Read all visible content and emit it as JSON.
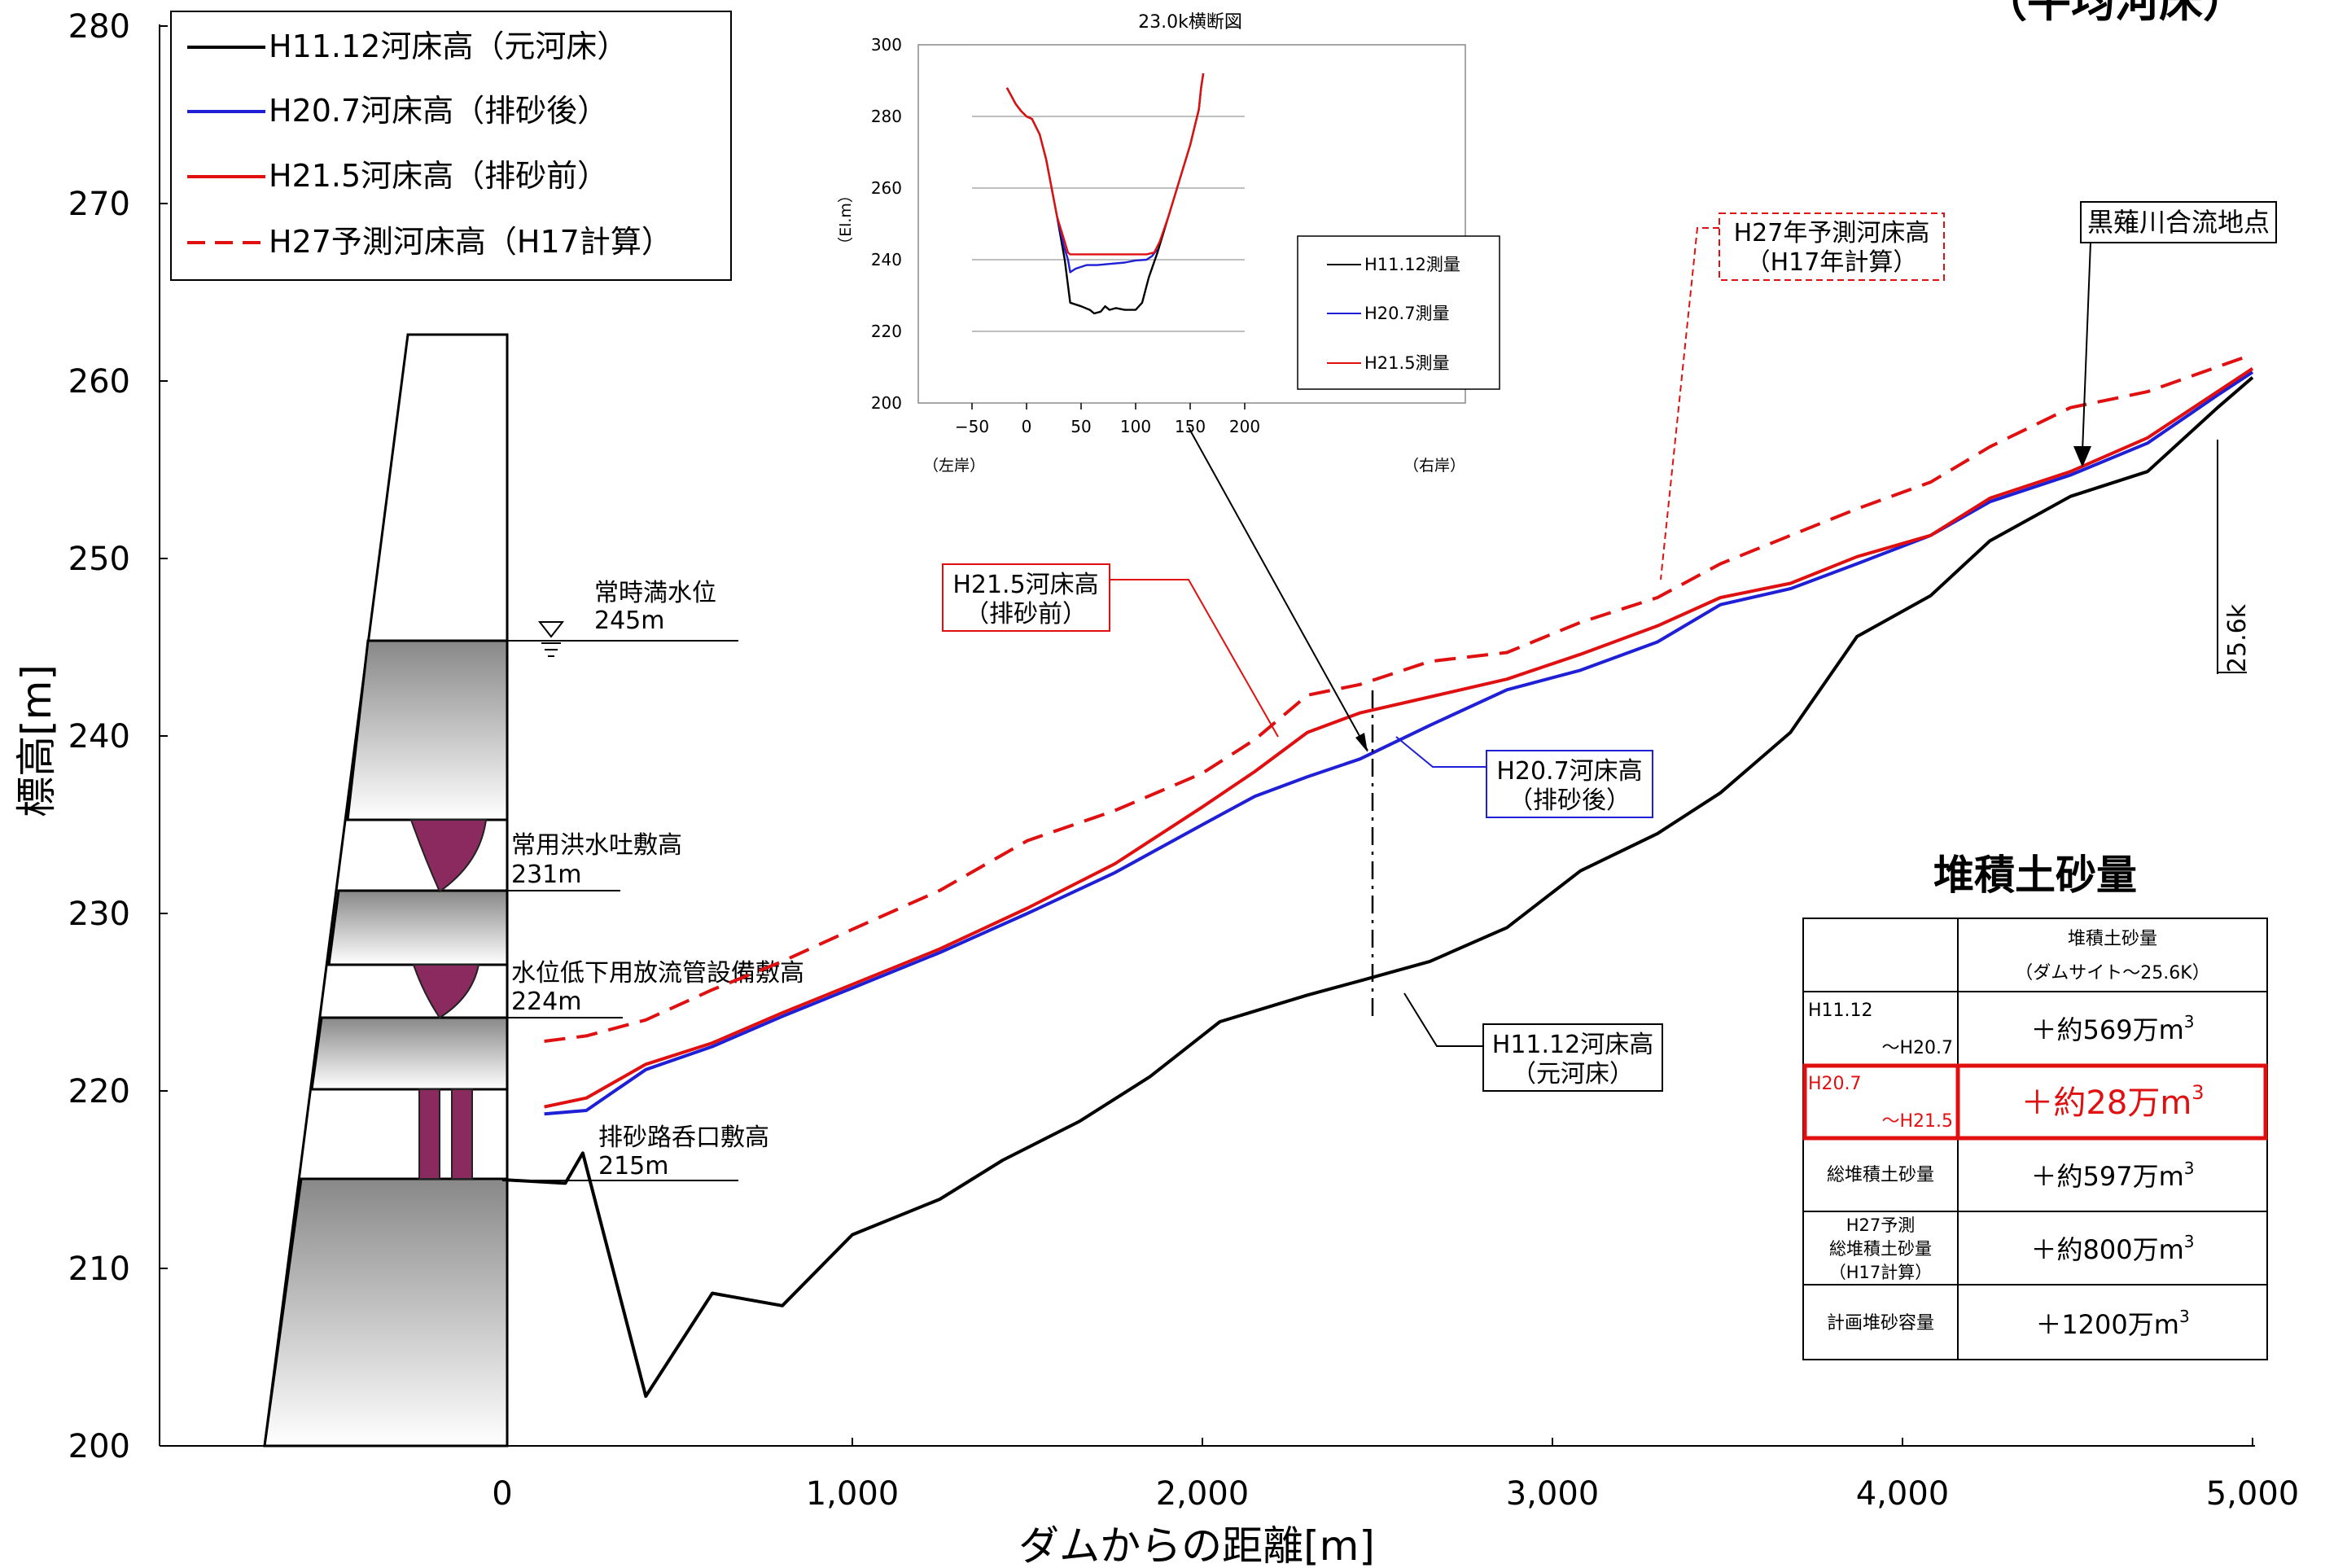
{
  "chart_data": {
    "type": "line",
    "corner_title": "（平均河床）",
    "xlabel": "ダムからの距離[m]",
    "ylabel": "標高[m]",
    "xlim": [
      -1000,
      5000
    ],
    "ylim": [
      200,
      280
    ],
    "x_ticks": [
      0,
      1000,
      2000,
      3000,
      4000,
      5000
    ],
    "x_tick_labels": [
      "0",
      "1,000",
      "2,000",
      "3,000",
      "4,000",
      "5,000"
    ],
    "y_ticks": [
      200,
      210,
      220,
      230,
      240,
      250,
      260,
      270,
      280
    ],
    "y_tick_labels": [
      "200",
      "210",
      "220",
      "230",
      "240",
      "250",
      "260",
      "270",
      "280"
    ],
    "legend_position": "top-left",
    "series": [
      {
        "name": "H11.12河床高（元河床）",
        "color": "#000000",
        "dash": "solid",
        "x": [
          0,
          180,
          230,
          410,
          600,
          800,
          1000,
          1250,
          1430,
          1650,
          1850,
          2050,
          2300,
          2450,
          2650,
          2870,
          3080,
          3300,
          3480,
          3680,
          3870,
          4080,
          4250,
          4480,
          4700,
          4900,
          5000
        ],
        "y": [
          215.0,
          214.8,
          216.5,
          202.8,
          208.6,
          207.9,
          211.9,
          213.9,
          216.1,
          218.3,
          220.8,
          223.9,
          225.4,
          226.2,
          227.3,
          229.2,
          232.4,
          234.5,
          236.8,
          240.2,
          245.6,
          247.9,
          251.0,
          253.5,
          254.9,
          258.5,
          260.2
        ]
      },
      {
        "name": "H20.7河床高（排砂後）",
        "color": "#1f1fd6",
        "dash": "solid",
        "x": [
          120,
          240,
          410,
          600,
          800,
          1000,
          1250,
          1500,
          1750,
          2000,
          2150,
          2300,
          2450,
          2650,
          2870,
          3080,
          3300,
          3480,
          3680,
          3870,
          4080,
          4250,
          4480,
          4700,
          4900,
          5000
        ],
        "y": [
          218.7,
          218.9,
          221.2,
          222.5,
          224.2,
          225.8,
          227.8,
          230.0,
          232.3,
          235.0,
          236.6,
          237.7,
          238.7,
          240.6,
          242.6,
          243.7,
          245.3,
          247.4,
          248.3,
          249.7,
          251.3,
          253.2,
          254.7,
          256.5,
          259.2,
          260.5
        ]
      },
      {
        "name": "H21.5河床高（排砂前）",
        "color": "#e01010",
        "dash": "solid",
        "x": [
          120,
          240,
          410,
          600,
          800,
          1000,
          1250,
          1500,
          1750,
          2000,
          2150,
          2300,
          2450,
          2650,
          2870,
          3080,
          3300,
          3480,
          3680,
          3870,
          4080,
          4250,
          4480,
          4700,
          4900,
          5000
        ],
        "y": [
          219.1,
          219.6,
          221.5,
          222.7,
          224.4,
          226.0,
          228.0,
          230.3,
          232.8,
          236.0,
          238.0,
          240.2,
          241.3,
          242.2,
          243.2,
          244.6,
          246.2,
          247.8,
          248.6,
          250.1,
          251.3,
          253.4,
          254.9,
          256.8,
          259.4,
          260.7
        ]
      },
      {
        "name": "H27予測河床高（H17計算）",
        "color": "#e01010",
        "dash": "dashed",
        "x": [
          120,
          240,
          410,
          600,
          800,
          1000,
          1250,
          1500,
          1750,
          2000,
          2150,
          2300,
          2450,
          2650,
          2870,
          3080,
          3300,
          3480,
          3680,
          3870,
          4080,
          4250,
          4480,
          4700,
          4900,
          5000
        ],
        "y": [
          222.8,
          223.1,
          224.0,
          225.7,
          227.3,
          229.1,
          231.3,
          234.1,
          235.8,
          237.9,
          239.8,
          242.3,
          242.9,
          244.2,
          244.7,
          246.4,
          247.8,
          249.7,
          251.3,
          252.8,
          254.3,
          256.3,
          258.5,
          259.4,
          260.8,
          261.5
        ]
      }
    ],
    "annotations": {
      "confluence": "黒薙川合流地点",
      "km_mark": "25.6k",
      "callout_h21": [
        "H21.5河床高",
        "（排砂前）"
      ],
      "callout_h20": [
        "H20.7河床高",
        "（排砂後）"
      ],
      "callout_h11": [
        "H11.12河床高",
        "（元河床）"
      ],
      "callout_h27": [
        "H27年予測河床高",
        "（H17年計算）"
      ]
    },
    "dam_labels": [
      {
        "name": "常時満水位",
        "value": "245m"
      },
      {
        "name": "常用洪水吐敷高",
        "value": "231m"
      },
      {
        "name": "水位低下用放流管設備敷高",
        "value": "224m"
      },
      {
        "name": "排砂路呑口敷高",
        "value": "215m"
      }
    ],
    "inset": {
      "type": "line",
      "title": "23.0k横断図",
      "ylabel": "（El.m）",
      "xlim": [
        -50,
        200
      ],
      "ylim": [
        200,
        300
      ],
      "x_ticks": [
        -50,
        0,
        50,
        100,
        150,
        200
      ],
      "x_tick_labels": [
        "−50",
        "0",
        "50",
        "100",
        "150",
        "200"
      ],
      "y_ticks": [
        200,
        220,
        240,
        260,
        280,
        300
      ],
      "y_tick_labels": [
        "200",
        "220",
        "240",
        "260",
        "280",
        "300"
      ],
      "left_bank": "（左岸）",
      "right_bank": "（右岸）",
      "legend_position": "right",
      "series": [
        {
          "name": "H11.12測量",
          "color": "#000000",
          "x": [
            -18,
            -10,
            -5,
            0,
            5,
            12,
            18,
            28,
            35,
            40,
            50,
            58,
            62,
            68,
            72,
            76,
            82,
            90,
            100,
            106,
            112,
            120,
            130,
            140,
            150,
            158,
            160,
            160,
            162
          ],
          "y": [
            288,
            283.5,
            281.5,
            280,
            279.3,
            275,
            268,
            252,
            240,
            228,
            227,
            226,
            225,
            225.5,
            227,
            226,
            226.5,
            226,
            226,
            228,
            235,
            242,
            252,
            262,
            272,
            282,
            288,
            288,
            292
          ]
        },
        {
          "name": "H20.7測量",
          "color": "#1f1fd6",
          "x": [
            28,
            34,
            38,
            40,
            45,
            55,
            65,
            75,
            90,
            100,
            110,
            115,
            120
          ],
          "y": [
            252,
            244,
            240,
            236.5,
            237.5,
            238.5,
            238.5,
            238.8,
            239.2,
            239.8,
            240,
            241,
            243
          ]
        },
        {
          "name": "H21.5測量",
          "color": "#e01010",
          "x": [
            -18,
            -10,
            -5,
            0,
            5,
            12,
            18,
            28,
            34,
            38,
            40,
            50,
            70,
            90,
            110,
            117,
            122,
            130,
            140,
            150,
            158,
            160,
            160,
            162
          ],
          "y": [
            288,
            283.5,
            281.5,
            280,
            279.3,
            275,
            268,
            252,
            246,
            242,
            241.5,
            241.5,
            241.5,
            241.5,
            241.5,
            242,
            245,
            252,
            262,
            272,
            282,
            288,
            288,
            292
          ]
        }
      ]
    },
    "sediment_table": {
      "title": "堆積土砂量",
      "header": [
        "堆積土砂量",
        "（ダムサイト～25.6K）"
      ],
      "rows": [
        {
          "label": [
            "H11.12",
            "～H20.7"
          ],
          "value": "＋約569万",
          "unit": "m",
          "exp": "3",
          "highlight": false
        },
        {
          "label": [
            "H20.7",
            "～H21.5"
          ],
          "value": "＋約28万",
          "unit": "m",
          "exp": "3",
          "highlight": true
        },
        {
          "label": [
            "総堆積土砂量"
          ],
          "value": "＋約597万",
          "unit": "m",
          "exp": "3",
          "highlight": false
        },
        {
          "label": [
            "H27予測",
            "総堆積土砂量",
            "（H17計算）"
          ],
          "value": "＋約800万",
          "unit": "m",
          "exp": "3",
          "highlight": false
        },
        {
          "label": [
            "計画堆砂容量"
          ],
          "value": "＋1200万",
          "unit": "m",
          "exp": "3",
          "highlight": false
        }
      ]
    }
  }
}
